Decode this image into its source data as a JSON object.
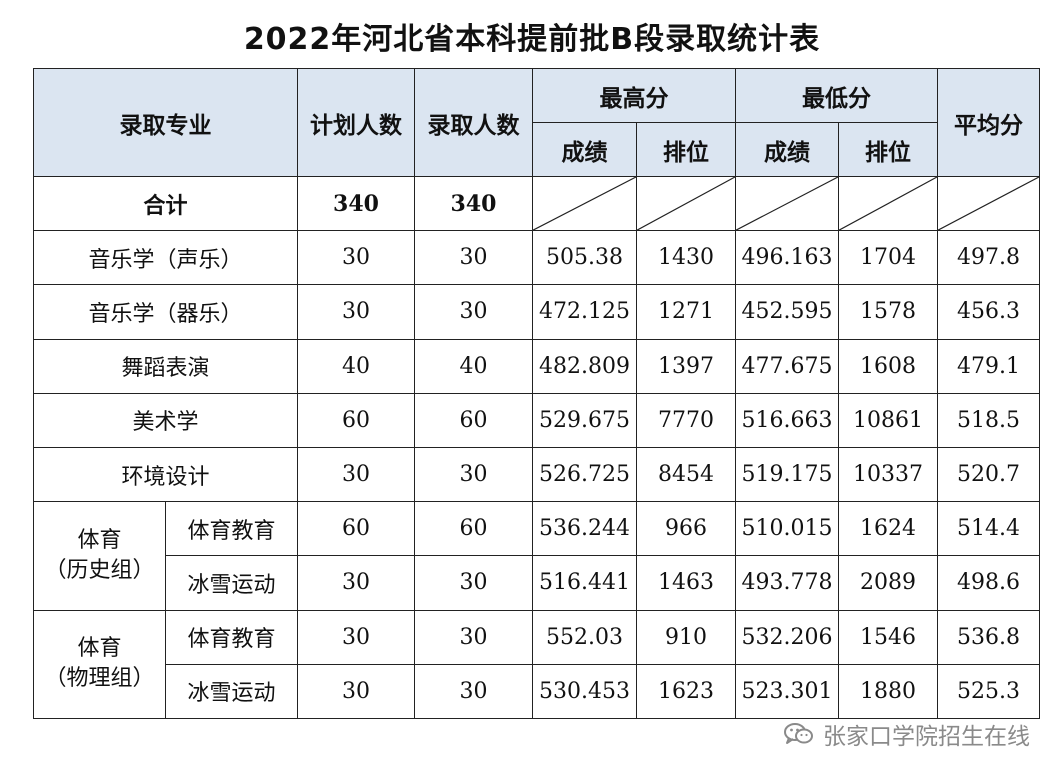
{
  "title": "2022年河北省本科提前批B段录取统计表",
  "headers": {
    "major": "录取专业",
    "plan": "计划人数",
    "admitted": "录取人数",
    "highest": "最高分",
    "lowest": "最低分",
    "average": "平均分",
    "score": "成绩",
    "rank": "排位"
  },
  "total": {
    "label": "合计",
    "plan": "340",
    "admitted": "340"
  },
  "rows": [
    {
      "major": "音乐学（声乐）",
      "plan": "30",
      "admitted": "30",
      "high_score": "505.38",
      "high_rank": "1430",
      "low_score": "496.163",
      "low_rank": "1704",
      "avg": "497.8"
    },
    {
      "major": "音乐学（器乐）",
      "plan": "30",
      "admitted": "30",
      "high_score": "472.125",
      "high_rank": "1271",
      "low_score": "452.595",
      "low_rank": "1578",
      "avg": "456.3"
    },
    {
      "major": "舞蹈表演",
      "plan": "40",
      "admitted": "40",
      "high_score": "482.809",
      "high_rank": "1397",
      "low_score": "477.675",
      "low_rank": "1608",
      "avg": "479.1"
    },
    {
      "major": "美术学",
      "plan": "60",
      "admitted": "60",
      "high_score": "529.675",
      "high_rank": "7770",
      "low_score": "516.663",
      "low_rank": "10861",
      "avg": "518.5"
    },
    {
      "major": "环境设计",
      "plan": "30",
      "admitted": "30",
      "high_score": "526.725",
      "high_rank": "8454",
      "low_score": "519.175",
      "low_rank": "10337",
      "avg": "520.7"
    }
  ],
  "groups": [
    {
      "label_line1": "体育",
      "label_line2": "（历史组）",
      "rows": [
        {
          "major": "体育教育",
          "plan": "60",
          "admitted": "60",
          "high_score": "536.244",
          "high_rank": "966",
          "low_score": "510.015",
          "low_rank": "1624",
          "avg": "514.4"
        },
        {
          "major": "冰雪运动",
          "plan": "30",
          "admitted": "30",
          "high_score": "516.441",
          "high_rank": "1463",
          "low_score": "493.778",
          "low_rank": "2089",
          "avg": "498.6"
        }
      ]
    },
    {
      "label_line1": "体育",
      "label_line2": "（物理组）",
      "rows": [
        {
          "major": "体育教育",
          "plan": "30",
          "admitted": "30",
          "high_score": "552.03",
          "high_rank": "910",
          "low_score": "532.206",
          "low_rank": "1546",
          "avg": "536.8"
        },
        {
          "major": "冰雪运动",
          "plan": "30",
          "admitted": "30",
          "high_score": "530.453",
          "high_rank": "1623",
          "low_score": "523.301",
          "low_rank": "1880",
          "avg": "525.3"
        }
      ]
    }
  ],
  "watermark": {
    "text": "张家口学院招生在线",
    "icon": "wechat-icon"
  }
}
